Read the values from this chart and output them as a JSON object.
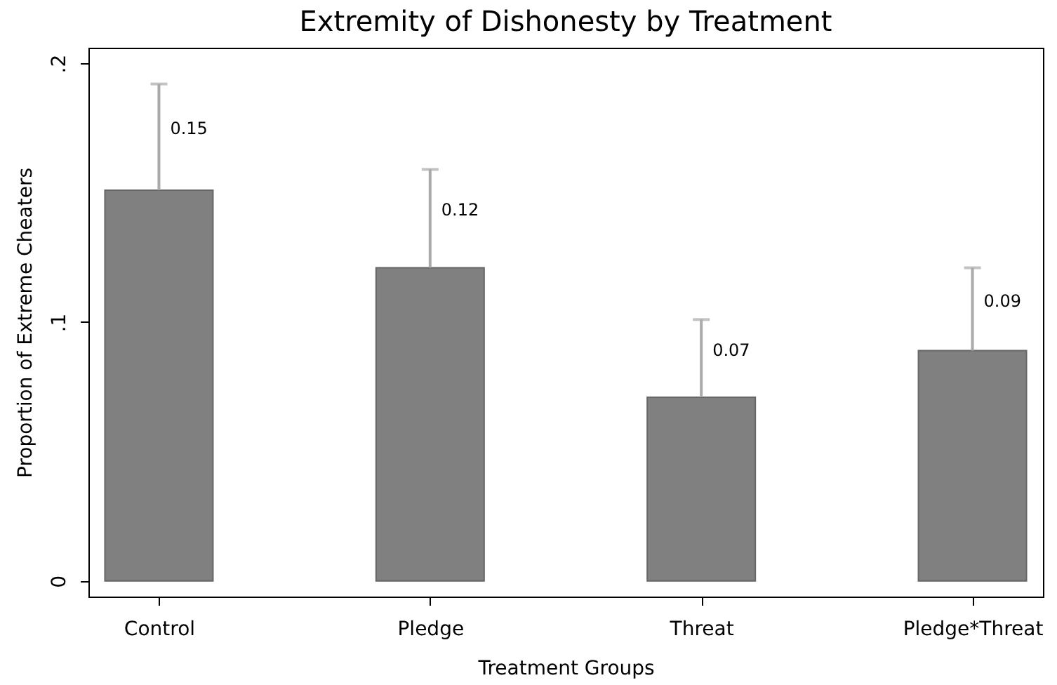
{
  "chart_data": {
    "type": "bar",
    "title": "Extremity of Dishonesty by Treatment",
    "xlabel": "Treatment Groups",
    "ylabel": "Proportion of  Extreme Cheaters",
    "categories": [
      "Control",
      "Pledge",
      "Threat",
      "Pledge*Threat"
    ],
    "values": [
      0.151,
      0.121,
      0.071,
      0.089
    ],
    "value_labels": [
      "0.15",
      "0.12",
      "0.07",
      "0.09"
    ],
    "errors": [
      [
        0.151,
        0.192
      ],
      [
        0.121,
        0.159
      ],
      [
        0.071,
        0.101
      ],
      [
        0.089,
        0.121
      ]
    ],
    "color": "#808080",
    "ylim": [
      -0.006,
      0.206
    ],
    "yticks": [
      0,
      {
        "value": 0.1,
        "label": ".1"
      },
      {
        "value": 0.2,
        "label": ".2"
      }
    ],
    "grid": false
  }
}
